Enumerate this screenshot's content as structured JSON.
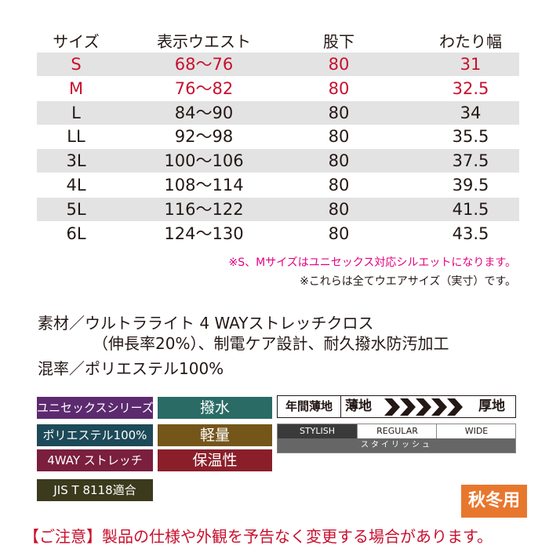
{
  "table": {
    "header": [
      "サイズ",
      "表示ウエスト",
      "股下",
      "わたり幅"
    ],
    "rows": [
      [
        "S",
        "68～76",
        "80",
        "31"
      ],
      [
        "M",
        "76～82",
        "80",
        "32.5"
      ],
      [
        "L",
        "84～90",
        "80",
        "34"
      ],
      [
        "LL",
        "92～98",
        "80",
        "35.5"
      ],
      [
        "3L",
        "100～106",
        "80",
        "37.5"
      ],
      [
        "4L",
        "108～114",
        "80",
        "39.5"
      ],
      [
        "5L",
        "116～122",
        "80",
        "41.5"
      ],
      [
        "6L",
        "124～130",
        "80",
        "43.5"
      ]
    ]
  },
  "notes": [
    "※S、Mサイズはユニセックス対応シルエットになります。",
    "※これらは全てウエアサイズ（実寸）です。"
  ],
  "material": [
    "素材／ウルトラライト 4 WAYストレッチクロス",
    "（伸長率20%）、制電ケア設計、耐久撥水防汚加工",
    "混率／ポリエステル100%"
  ],
  "tags": [
    "ユニセックスシリーズ",
    "ポリエステル100%",
    "4WAY ストレッチ",
    "JIS T 8118適合",
    "撥水",
    "軽量",
    "保温性"
  ],
  "thickness": {
    "label": "年間薄地",
    "thin": "薄地",
    "thick": "厚地"
  },
  "fit": {
    "options": [
      "STYLISH",
      "REGULAR",
      "WIDE"
    ],
    "selected": "スタイリッシュ"
  },
  "season": "秋冬用",
  "footer": "【ご注意】製品の仕様や外観を予告なく変更する場合があります。"
}
